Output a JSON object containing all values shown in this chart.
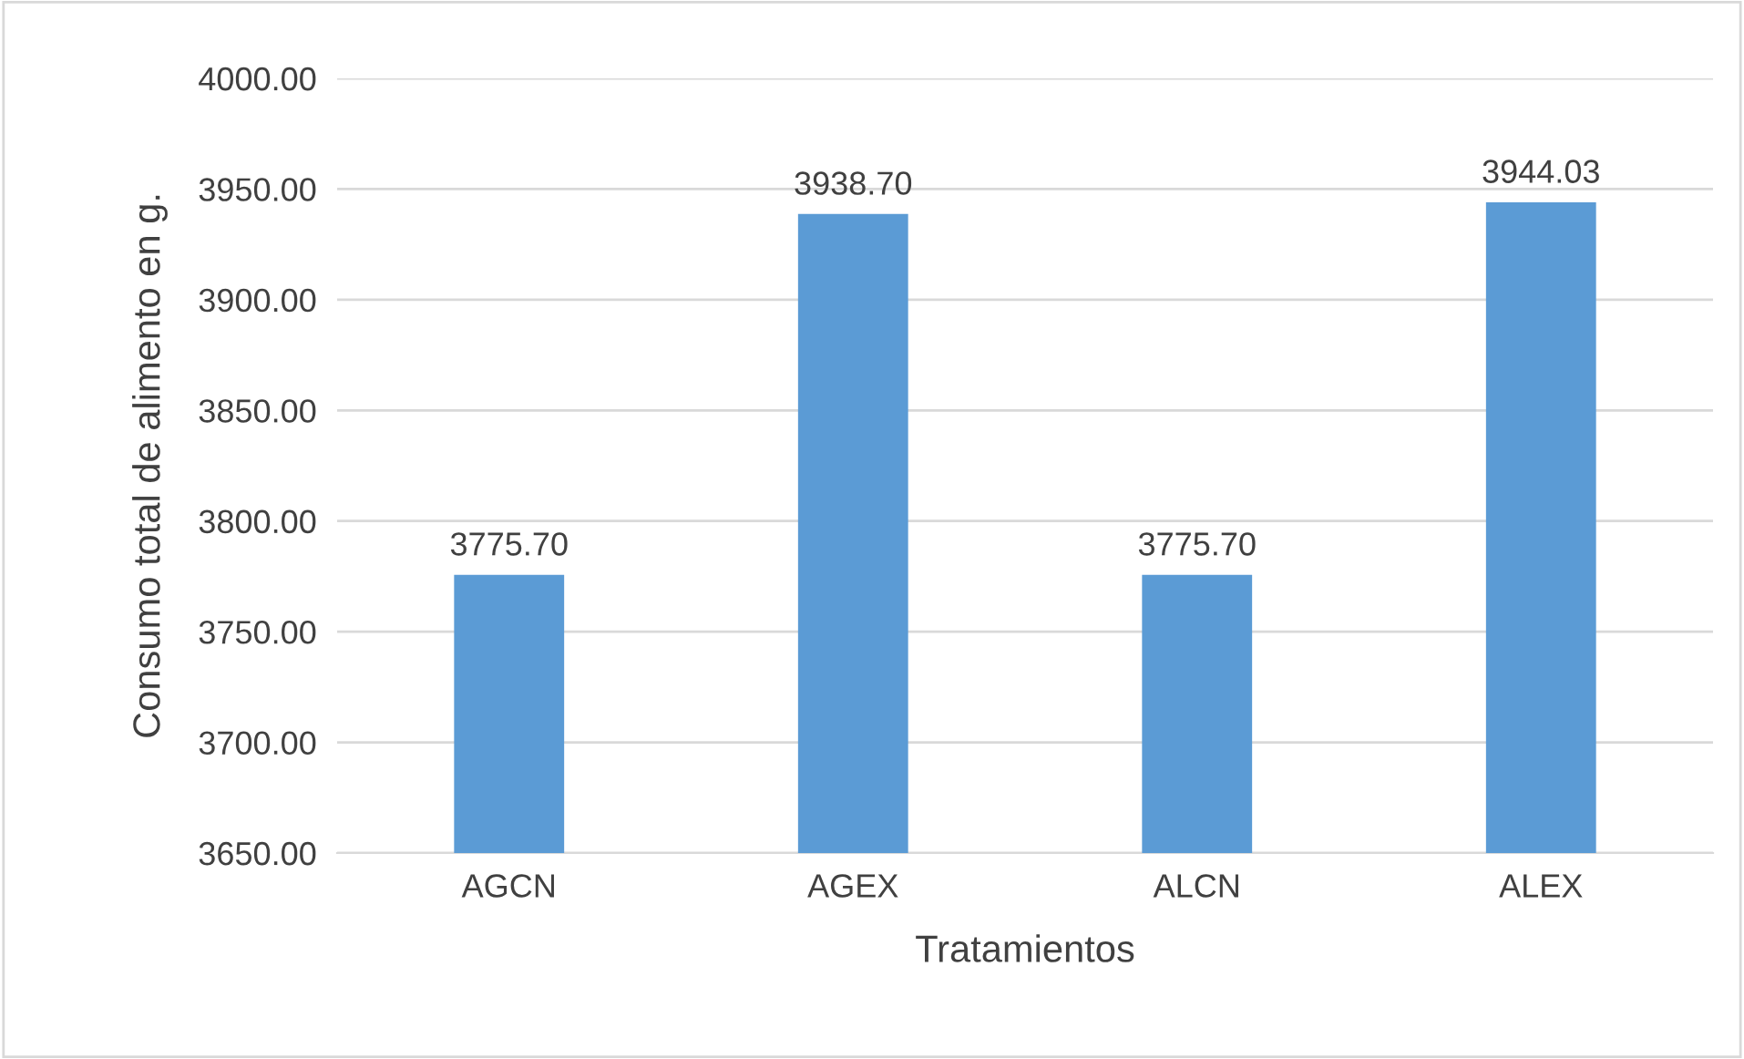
{
  "chart_data": {
    "type": "bar",
    "xlabel": "Tratamientos",
    "ylabel": "Consumo total de alimento en g.",
    "categories": [
      "AGCN",
      "AGEX",
      "ALCN",
      "ALEX"
    ],
    "values": [
      3775.7,
      3938.7,
      3775.7,
      3944.03
    ],
    "value_labels": [
      "3775.70",
      "3938.70",
      "3775.70",
      "3944.03"
    ],
    "color": "#5b9bd5",
    "ylim": [
      3650,
      4000
    ],
    "yticks": [
      {
        "value": 3650,
        "label": "3650.00"
      },
      {
        "value": 3700,
        "label": "3700.00"
      },
      {
        "value": 3750,
        "label": "3750.00"
      },
      {
        "value": 3800,
        "label": "3800.00"
      },
      {
        "value": 3850,
        "label": "3850.00"
      },
      {
        "value": 3900,
        "label": "3900.00"
      },
      {
        "value": 3950,
        "label": "3950.00"
      },
      {
        "value": 4000,
        "label": "4000.00"
      }
    ],
    "grid": "y",
    "legend": false
  }
}
